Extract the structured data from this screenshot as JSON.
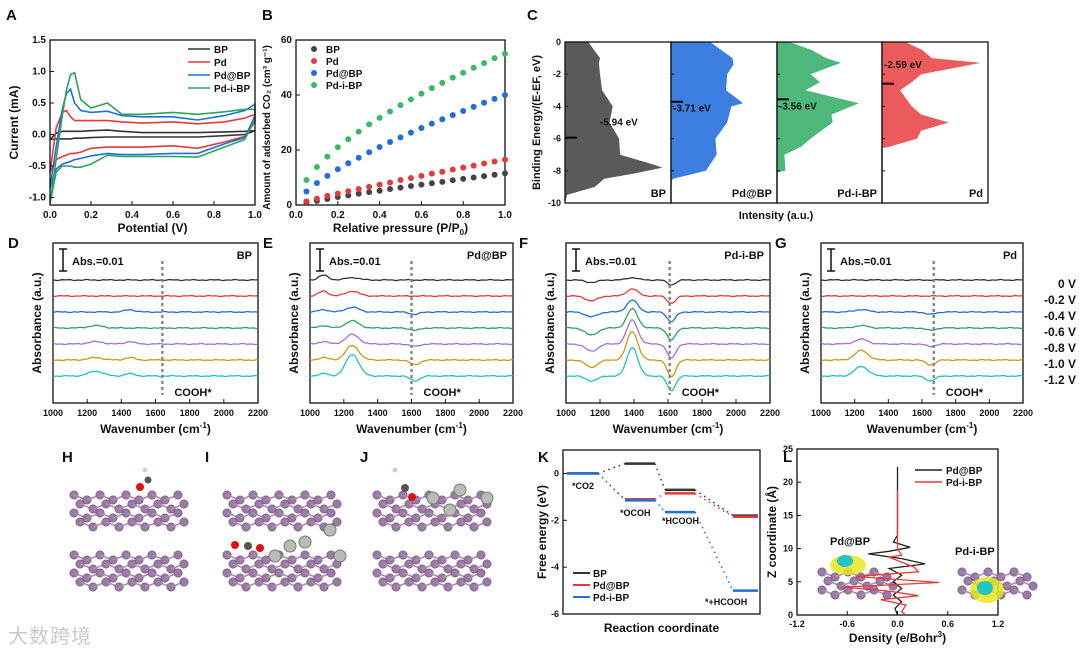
{
  "watermark": "大数跨境",
  "molecule_panels": [
    {
      "panel": "H"
    },
    {
      "panel": "I"
    },
    {
      "panel": "J"
    }
  ],
  "chart_data": [
    {
      "panel": "A",
      "type": "line",
      "xlabel": "Potential (V)",
      "ylabel": "Current (mA)",
      "xlim": [
        0,
        1
      ],
      "ylim": [
        -1.12,
        1.5
      ],
      "xticks": [
        "0.0",
        "0.2",
        "0.4",
        "0.6",
        "0.8",
        "1.0"
      ],
      "xtick_values": [
        0,
        0.2,
        0.4,
        0.6,
        0.8,
        1.0
      ],
      "yticks": [
        "-1.0",
        "-0.5",
        "0.0",
        "0.5",
        "1.0",
        "1.5"
      ],
      "ytick_values": [
        -1,
        -0.5,
        0,
        0.5,
        1,
        1.5
      ],
      "legend": "top-right",
      "x": [
        0,
        0.03,
        0.06,
        0.08,
        0.1,
        0.12,
        0.15,
        0.2,
        0.28,
        0.35,
        0.45,
        0.6,
        0.72,
        0.85,
        0.95,
        1.0
      ],
      "series": [
        {
          "name": "BP",
          "color": "#333333",
          "anodic": [
            -0.08,
            0.02,
            0.05,
            0.05,
            0.05,
            0.05,
            0.05,
            0.06,
            0.07,
            0.05,
            0.03,
            0.03,
            0.03,
            0.04,
            0.05,
            0.06
          ],
          "cathodic": [
            -0.08,
            -0.07,
            -0.07,
            -0.07,
            -0.07,
            -0.06,
            -0.06,
            -0.05,
            -0.04,
            -0.04,
            -0.04,
            -0.04,
            -0.04,
            -0.02,
            0.0,
            0.06
          ]
        },
        {
          "name": "Pd",
          "color": "#e8393a",
          "anodic": [
            -0.6,
            0.1,
            0.35,
            0.38,
            0.28,
            0.22,
            0.22,
            0.22,
            0.22,
            0.2,
            0.18,
            0.2,
            0.17,
            0.2,
            0.26,
            0.32
          ],
          "cathodic": [
            -0.6,
            -0.4,
            -0.35,
            -0.33,
            -0.3,
            -0.3,
            -0.28,
            -0.22,
            -0.2,
            -0.2,
            -0.2,
            -0.18,
            -0.22,
            -0.12,
            -0.03,
            0.2
          ]
        },
        {
          "name": "Pd@BP",
          "color": "#1e6fd9",
          "anodic": [
            -0.85,
            -0.2,
            0.4,
            0.65,
            0.72,
            0.5,
            0.38,
            0.35,
            0.37,
            0.3,
            0.28,
            0.28,
            0.23,
            0.3,
            0.38,
            0.48
          ],
          "cathodic": [
            -0.85,
            -0.55,
            -0.47,
            -0.45,
            -0.43,
            -0.4,
            -0.38,
            -0.34,
            -0.3,
            -0.32,
            -0.32,
            -0.3,
            -0.3,
            -0.15,
            -0.05,
            0.3
          ]
        },
        {
          "name": "Pd-i-BP",
          "color": "#2ea35a",
          "anodic": [
            -1.1,
            -0.4,
            0.3,
            0.7,
            0.95,
            0.98,
            0.55,
            0.42,
            0.5,
            0.32,
            0.32,
            0.35,
            0.32,
            0.36,
            0.4,
            0.4
          ],
          "cathodic": [
            -1.1,
            -0.6,
            -0.5,
            -0.5,
            -0.5,
            -0.52,
            -0.52,
            -0.47,
            -0.33,
            -0.35,
            -0.35,
            -0.35,
            -0.36,
            -0.2,
            -0.08,
            0.25
          ]
        }
      ]
    },
    {
      "panel": "B",
      "type": "scatter",
      "xlabel": "Relative pressure (P/P",
      "xlabel_sub": "0",
      "xlabel_end": ")",
      "ylabel": "Amount of adsorbed CO₂ (cm³ g⁻¹)",
      "xlim": [
        0,
        1
      ],
      "ylim": [
        0,
        60
      ],
      "xticks": [
        "0.0",
        "0.2",
        "0.4",
        "0.6",
        "0.8",
        "1.0"
      ],
      "xtick_values": [
        0,
        0.2,
        0.4,
        0.6,
        0.8,
        1.0
      ],
      "yticks": [
        "0",
        "20",
        "40",
        "60"
      ],
      "ytick_values": [
        0,
        20,
        40,
        60
      ],
      "legend": "top-left",
      "x": [
        0.05,
        0.1,
        0.15,
        0.2,
        0.25,
        0.3,
        0.35,
        0.4,
        0.45,
        0.5,
        0.55,
        0.6,
        0.65,
        0.7,
        0.75,
        0.8,
        0.85,
        0.9,
        0.95,
        1.0
      ],
      "series": [
        {
          "name": "BP",
          "color": "#444444",
          "values": [
            0.8,
            1.5,
            2.2,
            2.9,
            3.5,
            4.1,
            4.7,
            5.2,
            5.8,
            6.3,
            6.9,
            7.4,
            7.9,
            8.4,
            9.0,
            9.5,
            10.0,
            10.5,
            11.0,
            11.5
          ]
        },
        {
          "name": "Pd",
          "color": "#e8393a",
          "values": [
            1.3,
            2.3,
            3.3,
            4.2,
            5.0,
            5.8,
            6.6,
            7.4,
            8.2,
            9.1,
            9.8,
            10.6,
            11.4,
            12.1,
            12.9,
            13.6,
            14.3,
            15.1,
            15.8,
            16.5
          ]
        },
        {
          "name": "Pd@BP",
          "color": "#1e6fd9",
          "values": [
            4.9,
            8.0,
            10.6,
            13.0,
            15.2,
            17.2,
            19.2,
            21.1,
            22.9,
            24.6,
            26.3,
            28.0,
            29.6,
            31.2,
            32.7,
            34.2,
            35.7,
            37.2,
            38.6,
            40.0
          ]
        },
        {
          "name": "Pd-i-BP",
          "color": "#3cb86a",
          "values": [
            9.1,
            13.8,
            17.6,
            21.0,
            23.9,
            26.7,
            29.3,
            31.7,
            34.0,
            36.3,
            38.4,
            40.5,
            42.5,
            44.4,
            46.3,
            48.1,
            49.9,
            51.6,
            53.4,
            55.0
          ]
        }
      ]
    },
    {
      "panel": "C",
      "type": "area",
      "xlabel": "Intensity (a.u.)",
      "ylabel": "Binding Energy/(E-EF, eV)",
      "ylim": [
        -10,
        0
      ],
      "yticks": [
        "0",
        "-2",
        "-4",
        "-6",
        "-8",
        "-10"
      ],
      "ytick_values": [
        0,
        -2,
        -4,
        -6,
        -8,
        -10
      ],
      "series": [
        {
          "name": "BP",
          "color": "#5a5a5a",
          "d_band_center": -5.94,
          "center_label": "-5.94 eV",
          "energy": [
            0,
            -1,
            -1.3,
            -2,
            -3,
            -4,
            -5,
            -6,
            -7,
            -7.5,
            -7.8,
            -8.2,
            -8.5,
            -9,
            -9.5,
            -10
          ],
          "intensity": [
            0.25,
            0.3,
            0.35,
            0.3,
            0.38,
            0.42,
            0.45,
            0.48,
            0.55,
            0.75,
            0.95,
            0.6,
            0.4,
            0.25,
            0.05,
            0
          ]
        },
        {
          "name": "Pd@BP",
          "color": "#3d7fe0",
          "d_band_center": -3.71,
          "center_label": "-3.71 eV",
          "energy": [
            0,
            -1,
            -1.4,
            -2,
            -3,
            -3.8,
            -4,
            -5,
            -6,
            -7,
            -7.6,
            -8,
            -8.5,
            -8.7
          ],
          "intensity": [
            0.4,
            0.55,
            0.62,
            0.5,
            0.55,
            0.65,
            0.6,
            0.5,
            0.45,
            0.4,
            0.4,
            0.3,
            0.05,
            0
          ]
        },
        {
          "name": "Pd-i-BP",
          "color": "#4db87a",
          "d_band_center": -3.56,
          "center_label": "-3.56 eV",
          "energy": [
            0,
            -0.5,
            -1,
            -1.3,
            -2,
            -2.5,
            -3,
            -3.8,
            -4.5,
            -5,
            -6,
            -6.5,
            -7,
            -8,
            -8.1
          ],
          "intensity": [
            0.15,
            0.3,
            0.5,
            0.58,
            0.35,
            0.38,
            0.3,
            0.75,
            0.55,
            0.5,
            0.35,
            0.2,
            0.1,
            0.05,
            0
          ]
        },
        {
          "name": "Pd",
          "color": "#ec5b5b",
          "d_band_center": -2.59,
          "center_label": "-2.59 eV",
          "energy": [
            0,
            -0.5,
            -1,
            -1.3,
            -2,
            -2.5,
            -3,
            -4,
            -4.5,
            -5,
            -5.5,
            -6,
            -6.5,
            -6.6
          ],
          "intensity": [
            0.25,
            0.35,
            0.5,
            0.9,
            0.4,
            0.25,
            0.2,
            0.25,
            0.4,
            0.6,
            0.4,
            0.3,
            0.1,
            0
          ]
        }
      ]
    },
    {
      "panel": "D",
      "type": "line",
      "title": "BP",
      "xlabel": "Wavenumber (cm",
      "xlabel_sup": "-1",
      "xlabel_end": ")",
      "ylabel": "Absorbance (a.u.)",
      "scale_bar": "Abs.=0.01",
      "marker_label": "COOH*",
      "marker_x": 1640,
      "xlim": [
        1000,
        2200
      ],
      "xticks": [
        "1000",
        "1200",
        "1400",
        "1600",
        "1800",
        "2000",
        "2200"
      ],
      "xtick_values": [
        1000,
        1200,
        1400,
        1600,
        1800,
        2000,
        2200
      ],
      "peaks": [
        {
          "center": 1250,
          "width": 60,
          "amp": [
            0,
            0,
            0,
            0.001,
            0.001,
            0.001,
            0.002
          ]
        },
        {
          "center": 1450,
          "width": 40,
          "amp": [
            0,
            0,
            0.001,
            0,
            0.001,
            0.001,
            0.001
          ]
        }
      ]
    },
    {
      "panel": "E",
      "type": "line",
      "title": "Pd@BP",
      "xlabel": "Wavenumber (cm",
      "xlabel_sup": "-1",
      "xlabel_end": ")",
      "ylabel": "Absorbance (a.u.)",
      "scale_bar": "Abs.=0.01",
      "marker_label": "COOH*",
      "marker_x": 1600,
      "xlim": [
        1000,
        2200
      ],
      "xticks": [
        "1000",
        "1200",
        "1400",
        "1600",
        "1800",
        "2000",
        "2200"
      ],
      "xtick_values": [
        1000,
        1200,
        1400,
        1600,
        1800,
        2000,
        2200
      ],
      "peaks": [
        {
          "center": 1250,
          "width": 55,
          "amp": [
            0.001,
            0.002,
            0.002,
            0.003,
            0.004,
            0.006,
            0.009
          ]
        },
        {
          "center": 1080,
          "width": 40,
          "amp": [
            0.002,
            0.002,
            0.001,
            0.001,
            0.001,
            0.001,
            0.001
          ]
        },
        {
          "center": 1620,
          "width": 40,
          "amp": [
            0,
            0,
            -0.001,
            -0.001,
            -0.001,
            -0.002,
            -0.002
          ]
        }
      ]
    },
    {
      "panel": "F",
      "type": "line",
      "title": "Pd-i-BP",
      "xlabel": "Wavenumber (cm",
      "xlabel_sup": "-1",
      "xlabel_end": ")",
      "ylabel": "Absorbance (a.u.)",
      "scale_bar": "Abs.=0.01",
      "marker_label": "COOH*",
      "marker_x": 1610,
      "xlim": [
        1000,
        2200
      ],
      "xticks": [
        "1000",
        "1200",
        "1400",
        "1600",
        "1800",
        "2000",
        "2200"
      ],
      "xtick_values": [
        1000,
        1200,
        1400,
        1600,
        1800,
        2000,
        2200
      ],
      "peaks": [
        {
          "center": 1390,
          "width": 45,
          "amp": [
            0.001,
            0.003,
            0.005,
            0.008,
            0.01,
            0.012,
            0.012
          ]
        },
        {
          "center": 1620,
          "width": 35,
          "amp": [
            -0.002,
            -0.003,
            -0.004,
            -0.005,
            -0.006,
            -0.007,
            -0.006
          ]
        },
        {
          "center": 1150,
          "width": 50,
          "amp": [
            -0.001,
            -0.002,
            -0.002,
            -0.003,
            -0.003,
            -0.003,
            -0.002
          ]
        }
      ]
    },
    {
      "panel": "G",
      "type": "line",
      "title": "Pd",
      "xlabel": "Wavenumber (cm",
      "xlabel_sup": "-1",
      "xlabel_end": ")",
      "ylabel": "Absorbance (a.u.)",
      "scale_bar": "Abs.=0.01",
      "marker_label": "COOH*",
      "marker_x": 1670,
      "xlim": [
        1000,
        2200
      ],
      "xticks": [
        "1000",
        "1200",
        "1400",
        "1600",
        "1800",
        "2000",
        "2200"
      ],
      "xtick_values": [
        1000,
        1200,
        1400,
        1600,
        1800,
        2000,
        2200
      ],
      "peaks": [
        {
          "center": 1240,
          "width": 55,
          "amp": [
            0,
            0,
            0.001,
            0.001,
            0.002,
            0.004,
            0.004
          ]
        },
        {
          "center": 1650,
          "width": 40,
          "amp": [
            0,
            0,
            -0.001,
            -0.001,
            -0.001,
            -0.002,
            -0.002
          ]
        }
      ]
    },
    {
      "panel": "K",
      "type": "line",
      "xlabel": "Reaction coordinate",
      "ylabel": "Free energy (eV)",
      "ylim": [
        -6,
        1
      ],
      "yticks": [
        "0",
        "-2",
        "-4",
        "-6"
      ],
      "ytick_values": [
        0,
        -2,
        -4,
        -6
      ],
      "legend": "bottom-left",
      "states": [
        "*CO2",
        "*OCOH",
        "*HCOOH",
        "*+HCOOH"
      ],
      "state_labels": [
        {
          "main": "*CO",
          "sub": "2"
        },
        {
          "main": "*OCOH"
        },
        {
          "main": "*HCOOH"
        },
        {
          "main": "*+HCOOH"
        }
      ],
      "series": [
        {
          "name": "BP",
          "color": "#333333",
          "values": [
            0,
            0.42,
            -0.7,
            -1.8
          ]
        },
        {
          "name": "Pd@BP",
          "color": "#e8393a",
          "values": [
            0,
            -1.1,
            -0.85,
            -1.85
          ]
        },
        {
          "name": "Pd-i-BP",
          "color": "#1e6fd9",
          "values": [
            0,
            -1.15,
            -1.65,
            -5.0
          ]
        }
      ]
    },
    {
      "panel": "L",
      "type": "line",
      "xlabel": "Density (e/Bohr",
      "xlabel_sup": "3",
      "xlabel_end": ")",
      "ylabel": "Z coordinate (Å)",
      "xlim": [
        -1.2,
        1.2
      ],
      "ylim": [
        0,
        25
      ],
      "xticks": [
        "-1.2",
        "-0.6",
        "0.0",
        "0.6",
        "1.2"
      ],
      "xtick_values": [
        -1.2,
        -0.6,
        0,
        0.6,
        1.2
      ],
      "yticks": [
        "0",
        "5",
        "10",
        "15",
        "20",
        "25"
      ],
      "ytick_values": [
        0,
        5,
        10,
        15,
        20,
        25
      ],
      "legend": "top-right",
      "inset_labels": [
        "Pd@BP",
        "Pd-i-BP"
      ],
      "series": [
        {
          "name": "Pd@BP",
          "color": "#222222",
          "z": [
            22.3,
            12,
            11,
            10.2,
            9.6,
            9.2,
            8.5,
            7.7,
            7,
            6,
            5,
            4,
            3,
            2,
            1,
            0
          ],
          "density": [
            0,
            0,
            -0.05,
            0.15,
            -0.1,
            -0.35,
            0.05,
            0.33,
            -0.1,
            0.05,
            -0.05,
            0.05,
            -0.05,
            0.05,
            -0.03,
            0
          ]
        },
        {
          "name": "Pd-i-BP",
          "color": "#e8393a",
          "z": [
            18.7,
            10,
            9,
            8.7,
            7.2,
            6.5,
            5.8,
            4.9,
            4.2,
            3.6,
            2.9,
            2.3,
            1.5,
            0.5,
            0
          ],
          "density": [
            0,
            0,
            0.05,
            -0.1,
            0.2,
            0.25,
            -0.5,
            0.5,
            -0.65,
            -0.1,
            0.25,
            -0.2,
            0.1,
            0.05,
            0.1
          ]
        }
      ]
    }
  ],
  "spectra_legend": {
    "potentials": [
      "0 V",
      "-0.2 V",
      "-0.4 V",
      "-0.6 V",
      "-0.8 V",
      "-1.0 V",
      "-1.2 V"
    ],
    "colors": [
      "#333333",
      "#e8393a",
      "#1e6fd9",
      "#2ea35a",
      "#a36fd6",
      "#c99a10",
      "#1fc2c2"
    ]
  }
}
